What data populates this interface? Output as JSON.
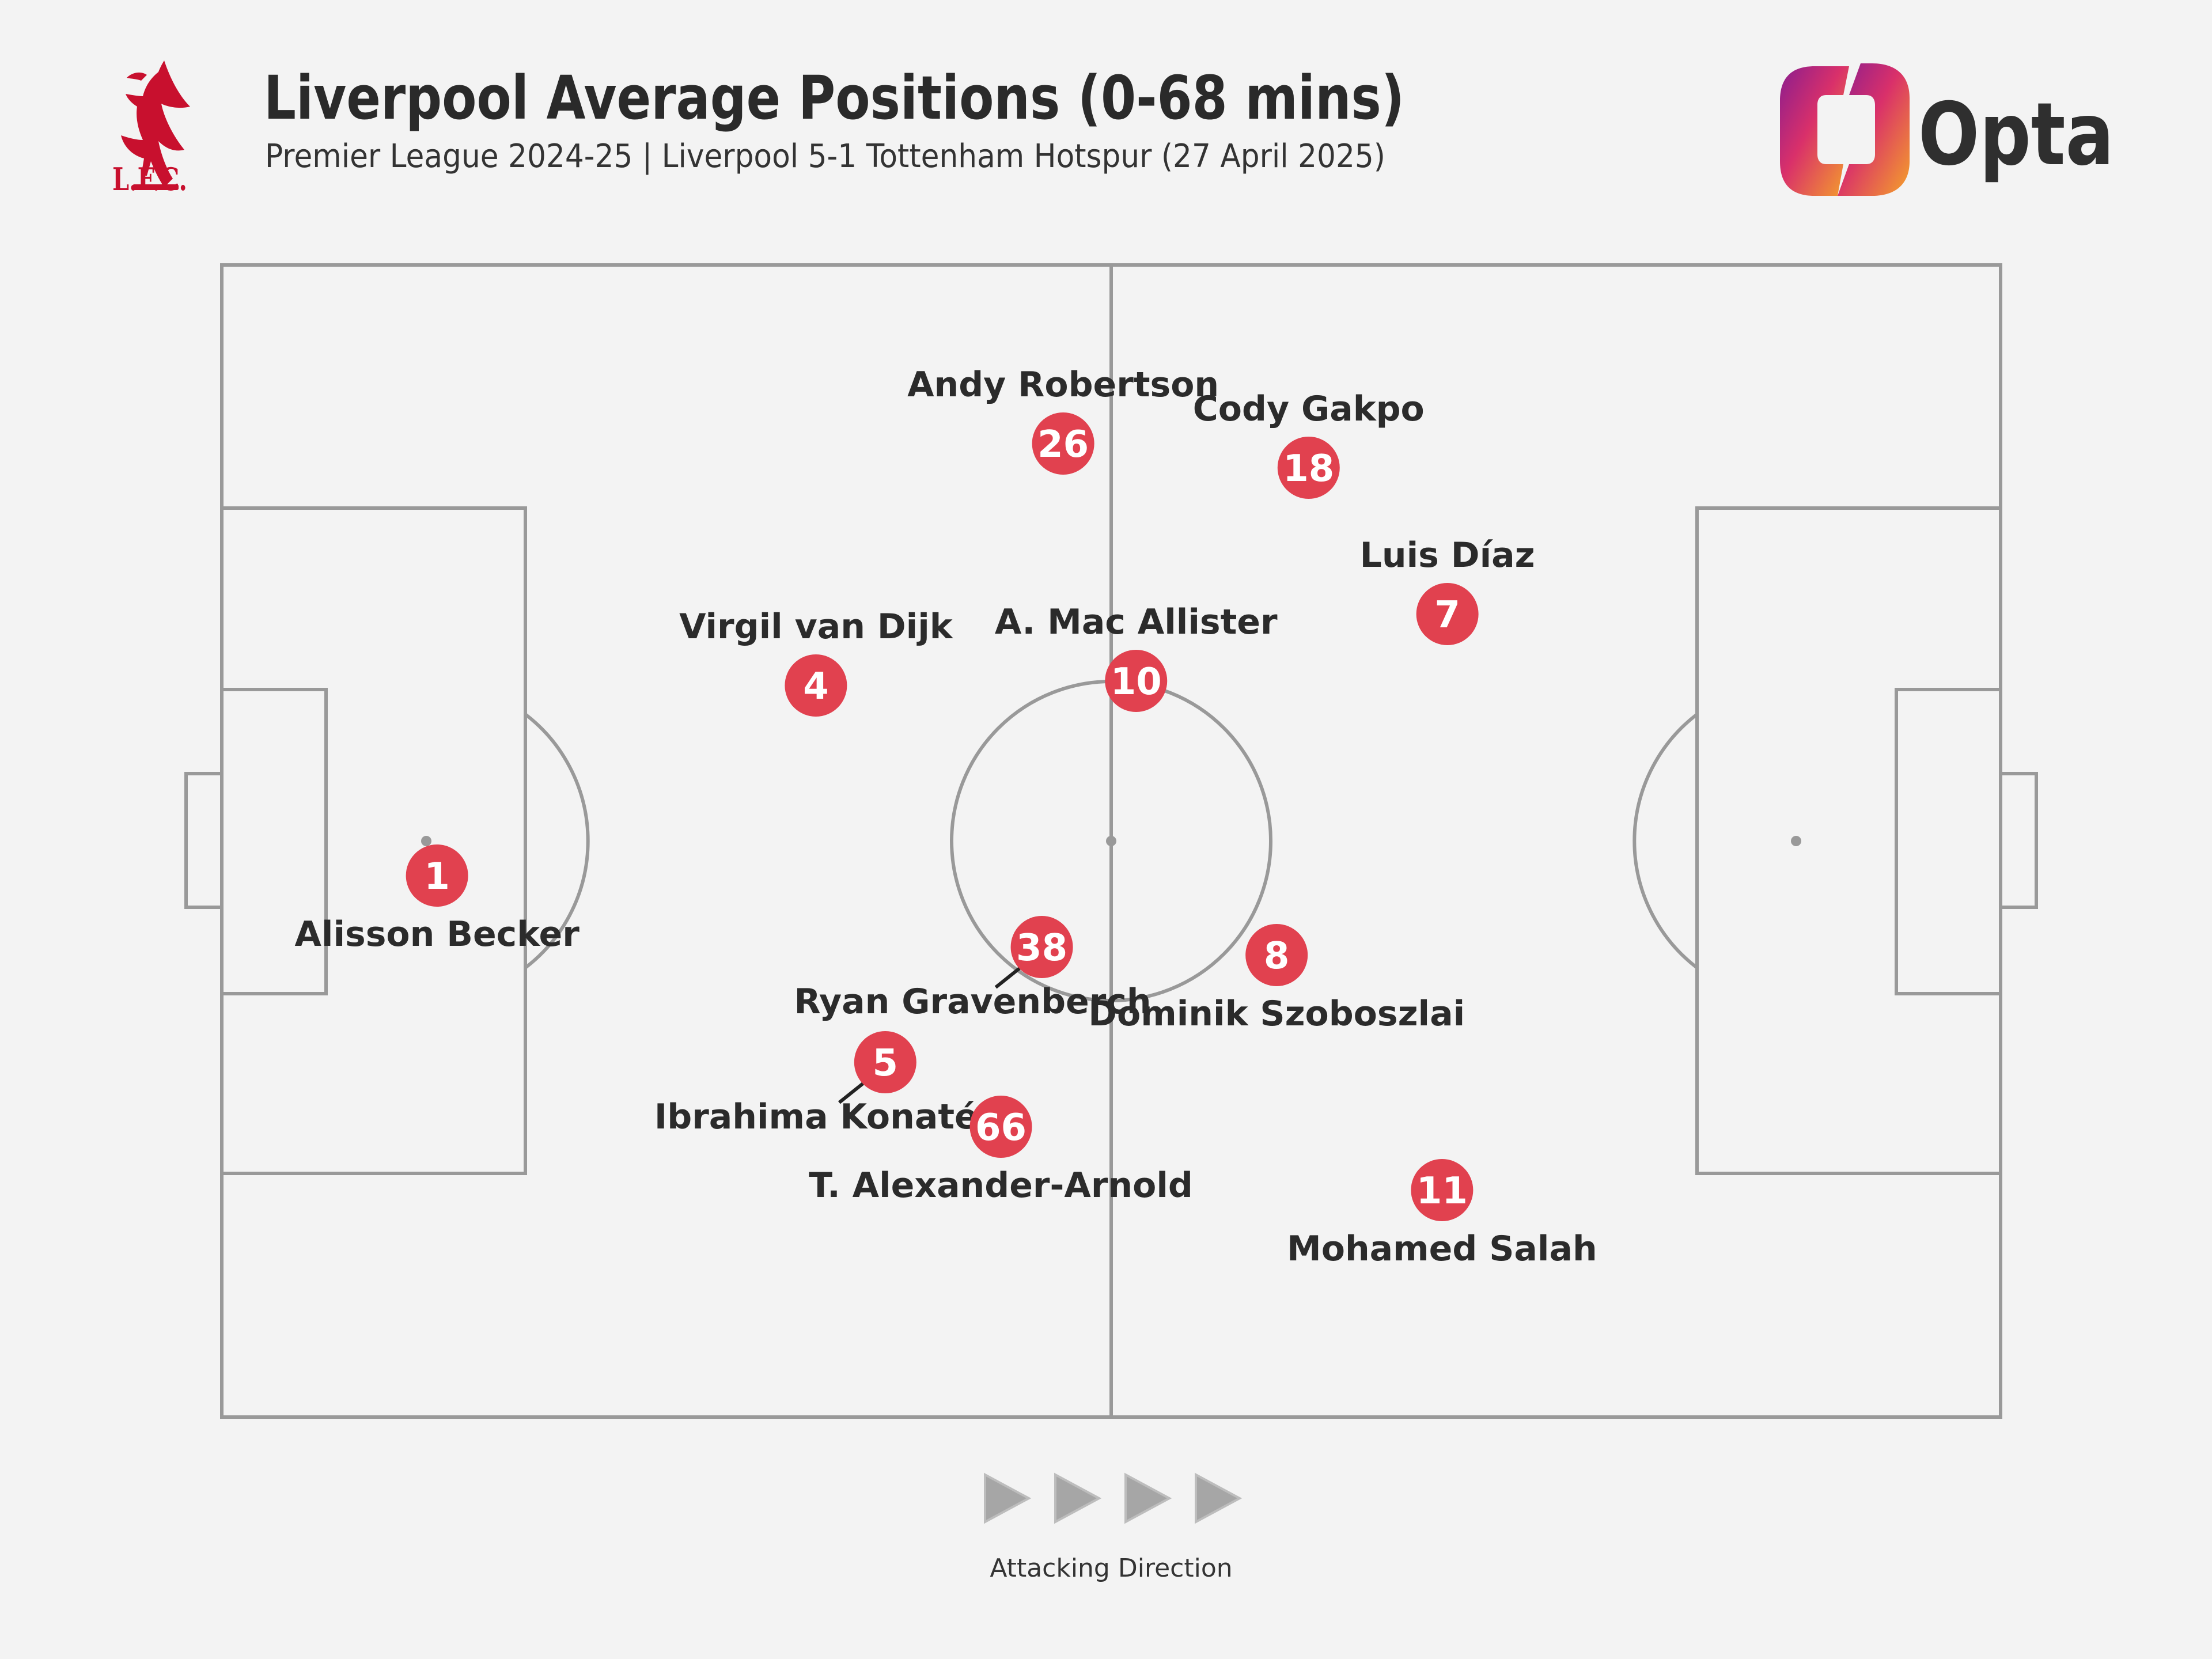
{
  "header": {
    "title": "Liverpool Average Positions (0-68 mins)",
    "subtitle": "Premier League 2024-25 | Liverpool 5-1 Tottenham Hotspur (27 April 2025)"
  },
  "club_crest": {
    "icon": "liverbird-crest-icon",
    "letters": "L.F.C.",
    "color": "#c8102e"
  },
  "brand": {
    "icon": "opta-logo-icon",
    "name": "Opta"
  },
  "attacking_direction": {
    "label": "Attacking Direction",
    "arrow_count": 4,
    "arrow_color": "#a6a6a6"
  },
  "colors": {
    "marker": "#e1414f",
    "pitch_lines": "#999999",
    "background": "#f3f3f3"
  },
  "chart_data": {
    "type": "scatter",
    "title": "Liverpool Average Positions (0-68 mins)",
    "subtitle": "Premier League 2024-25 | Liverpool 5-1 Tottenham Hotspur (27 April 2025)",
    "xlim": [
      0,
      100
    ],
    "ylim": [
      0,
      100
    ],
    "players": [
      {
        "number": "1",
        "name": "Alisson Becker",
        "x": 12.1,
        "y": 47.0,
        "label_pos": "below"
      },
      {
        "number": "4",
        "name": "Virgil van Dijk",
        "x": 33.4,
        "y": 63.5,
        "label_pos": "above"
      },
      {
        "number": "5",
        "name": "Ibrahima Konaté",
        "x": 37.3,
        "y": 30.8,
        "label_pos": "below-left"
      },
      {
        "number": "66",
        "name": "T. Alexander-Arnold",
        "x": 43.8,
        "y": 25.2,
        "label_pos": "below"
      },
      {
        "number": "38",
        "name": "Ryan Gravenberch",
        "x": 46.1,
        "y": 40.8,
        "label_pos": "below-left"
      },
      {
        "number": "26",
        "name": "Andy Robertson",
        "x": 47.3,
        "y": 84.5,
        "label_pos": "above"
      },
      {
        "number": "10",
        "name": "A. Mac Allister",
        "x": 51.4,
        "y": 63.9,
        "label_pos": "above"
      },
      {
        "number": "18",
        "name": "Cody Gakpo",
        "x": 61.1,
        "y": 82.4,
        "label_pos": "above"
      },
      {
        "number": "8",
        "name": "Dominik Szoboszlai",
        "x": 59.3,
        "y": 40.1,
        "label_pos": "below"
      },
      {
        "number": "7",
        "name": "Luis Díaz",
        "x": 68.9,
        "y": 69.7,
        "label_pos": "above"
      },
      {
        "number": "11",
        "name": "Mohamed Salah",
        "x": 68.6,
        "y": 19.7,
        "label_pos": "below"
      }
    ]
  }
}
